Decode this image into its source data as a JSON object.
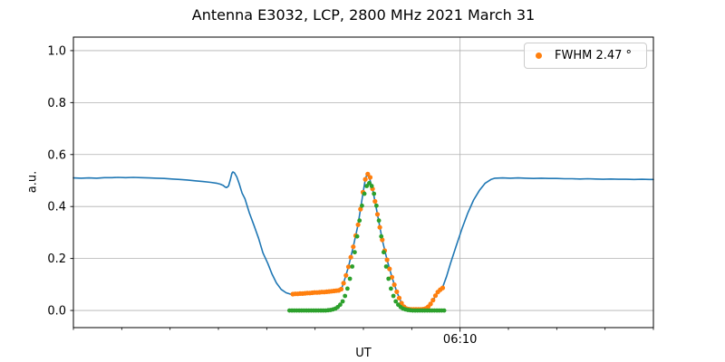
{
  "title": "Antenna E3032, LCP, 2800 MHz 2021 March 31",
  "axis": {
    "xlabel": "UT",
    "ylabel": "a.u."
  },
  "legend": {
    "label": "FWHM 2.47 °",
    "marker_color": "#ff7f0e"
  },
  "colors": {
    "background": "#ffffff",
    "grid": "#b0b0b0",
    "spine": "#000000",
    "tick_text": "#000000"
  },
  "chart_data": {
    "type": "line",
    "title": "Antenna E3032, LCP, 2800 MHz 2021 March 31",
    "xlabel": "UT",
    "ylabel": "a.u.",
    "x_unit": "minutes after 00:00 UT (370 = 06:10)",
    "xlim": [
      330,
      390
    ],
    "ylim": [
      -0.066,
      1.052
    ],
    "x_major_ticks": [
      {
        "value": 370,
        "label": "06:10"
      }
    ],
    "x_minor_tick_step": 5,
    "y_ticks": [
      0.0,
      0.2,
      0.4,
      0.6,
      0.8,
      1.0
    ],
    "grid": true,
    "legend_position": "upper right",
    "series": [
      {
        "name": "signal",
        "type": "line",
        "color": "#1f77b4",
        "line_width": 1.6,
        "points": [
          [
            330.0,
            0.51
          ],
          [
            330.8,
            0.509
          ],
          [
            331.6,
            0.51
          ],
          [
            332.4,
            0.509
          ],
          [
            333.2,
            0.511
          ],
          [
            334.0,
            0.511
          ],
          [
            334.6,
            0.512
          ],
          [
            335.4,
            0.511
          ],
          [
            336.2,
            0.512
          ],
          [
            337.0,
            0.511
          ],
          [
            337.8,
            0.51
          ],
          [
            338.6,
            0.509
          ],
          [
            339.4,
            0.508
          ],
          [
            340.2,
            0.506
          ],
          [
            341.0,
            0.504
          ],
          [
            341.8,
            0.502
          ],
          [
            342.6,
            0.499
          ],
          [
            343.4,
            0.496
          ],
          [
            344.2,
            0.493
          ],
          [
            344.8,
            0.49
          ],
          [
            345.2,
            0.486
          ],
          [
            345.5,
            0.481
          ],
          [
            345.7,
            0.475
          ],
          [
            345.85,
            0.473
          ],
          [
            346.05,
            0.479
          ],
          [
            346.25,
            0.505
          ],
          [
            346.4,
            0.528
          ],
          [
            346.5,
            0.533
          ],
          [
            346.65,
            0.53
          ],
          [
            346.9,
            0.514
          ],
          [
            347.15,
            0.488
          ],
          [
            347.45,
            0.452
          ],
          [
            347.75,
            0.43
          ],
          [
            348.2,
            0.376
          ],
          [
            348.7,
            0.325
          ],
          [
            349.15,
            0.278
          ],
          [
            349.6,
            0.222
          ],
          [
            350.1,
            0.182
          ],
          [
            350.55,
            0.14
          ],
          [
            351.0,
            0.106
          ],
          [
            351.5,
            0.081
          ],
          [
            352.0,
            0.068
          ],
          [
            352.45,
            0.063
          ],
          [
            352.9,
            0.062
          ],
          [
            353.5,
            0.063
          ],
          [
            354.2,
            0.065
          ],
          [
            355.0,
            0.066
          ],
          [
            355.8,
            0.068
          ],
          [
            356.6,
            0.071
          ],
          [
            357.2,
            0.074
          ],
          [
            357.7,
            0.08
          ],
          [
            358.0,
            0.112
          ],
          [
            358.45,
            0.168
          ],
          [
            358.95,
            0.245
          ],
          [
            359.45,
            0.33
          ],
          [
            359.95,
            0.45
          ],
          [
            360.2,
            0.505
          ],
          [
            360.35,
            0.522
          ],
          [
            360.6,
            0.512
          ],
          [
            360.95,
            0.468
          ],
          [
            361.45,
            0.37
          ],
          [
            361.95,
            0.272
          ],
          [
            362.45,
            0.195
          ],
          [
            362.95,
            0.128
          ],
          [
            363.45,
            0.072
          ],
          [
            363.95,
            0.028
          ],
          [
            364.45,
            0.008
          ],
          [
            364.95,
            0.005
          ],
          [
            365.7,
            0.004
          ],
          [
            366.2,
            0.005
          ],
          [
            366.7,
            0.014
          ],
          [
            367.2,
            0.04
          ],
          [
            367.7,
            0.071
          ],
          [
            368.2,
            0.09
          ],
          [
            368.6,
            0.13
          ],
          [
            369.0,
            0.18
          ],
          [
            369.6,
            0.248
          ],
          [
            370.2,
            0.315
          ],
          [
            370.8,
            0.375
          ],
          [
            371.4,
            0.425
          ],
          [
            372.0,
            0.462
          ],
          [
            372.6,
            0.49
          ],
          [
            373.2,
            0.504
          ],
          [
            373.6,
            0.509
          ],
          [
            374.4,
            0.51
          ],
          [
            375.2,
            0.509
          ],
          [
            376.0,
            0.51
          ],
          [
            376.8,
            0.509
          ],
          [
            377.6,
            0.508
          ],
          [
            378.4,
            0.509
          ],
          [
            379.2,
            0.508
          ],
          [
            380.0,
            0.508
          ],
          [
            380.8,
            0.507
          ],
          [
            381.6,
            0.507
          ],
          [
            382.4,
            0.506
          ],
          [
            383.2,
            0.507
          ],
          [
            384.0,
            0.506
          ],
          [
            384.8,
            0.505
          ],
          [
            385.6,
            0.506
          ],
          [
            386.4,
            0.505
          ],
          [
            387.2,
            0.505
          ],
          [
            388.0,
            0.504
          ],
          [
            388.8,
            0.505
          ],
          [
            389.6,
            0.504
          ],
          [
            390.0,
            0.504
          ]
        ]
      },
      {
        "name": "scan",
        "type": "scatter",
        "color": "#ff7f0e",
        "marker_radius": 2.6,
        "label": "FWHM 2.47 °",
        "points": [
          [
            352.7,
            0.063
          ],
          [
            352.95,
            0.064
          ],
          [
            353.2,
            0.064
          ],
          [
            353.45,
            0.065
          ],
          [
            353.7,
            0.065
          ],
          [
            353.95,
            0.066
          ],
          [
            354.2,
            0.067
          ],
          [
            354.45,
            0.067
          ],
          [
            354.7,
            0.068
          ],
          [
            354.95,
            0.069
          ],
          [
            355.2,
            0.069
          ],
          [
            355.45,
            0.07
          ],
          [
            355.7,
            0.071
          ],
          [
            355.95,
            0.071
          ],
          [
            356.2,
            0.072
          ],
          [
            356.45,
            0.073
          ],
          [
            356.7,
            0.074
          ],
          [
            356.95,
            0.075
          ],
          [
            357.2,
            0.076
          ],
          [
            357.45,
            0.077
          ],
          [
            357.7,
            0.082
          ],
          [
            357.95,
            0.105
          ],
          [
            358.2,
            0.135
          ],
          [
            358.45,
            0.168
          ],
          [
            358.7,
            0.205
          ],
          [
            358.95,
            0.245
          ],
          [
            359.2,
            0.288
          ],
          [
            359.45,
            0.33
          ],
          [
            359.7,
            0.39
          ],
          [
            359.95,
            0.455
          ],
          [
            360.2,
            0.505
          ],
          [
            360.45,
            0.525
          ],
          [
            360.7,
            0.512
          ],
          [
            360.95,
            0.468
          ],
          [
            361.2,
            0.42
          ],
          [
            361.45,
            0.37
          ],
          [
            361.7,
            0.32
          ],
          [
            361.95,
            0.272
          ],
          [
            362.2,
            0.23
          ],
          [
            362.45,
            0.195
          ],
          [
            362.7,
            0.16
          ],
          [
            362.95,
            0.128
          ],
          [
            363.2,
            0.099
          ],
          [
            363.45,
            0.072
          ],
          [
            363.7,
            0.048
          ],
          [
            363.95,
            0.028
          ],
          [
            364.2,
            0.014
          ],
          [
            364.45,
            0.007
          ],
          [
            364.7,
            0.005
          ],
          [
            364.95,
            0.004
          ],
          [
            365.2,
            0.004
          ],
          [
            365.45,
            0.004
          ],
          [
            365.7,
            0.004
          ],
          [
            365.95,
            0.004
          ],
          [
            366.2,
            0.005
          ],
          [
            366.45,
            0.008
          ],
          [
            366.7,
            0.014
          ],
          [
            366.95,
            0.025
          ],
          [
            367.2,
            0.04
          ],
          [
            367.45,
            0.057
          ],
          [
            367.7,
            0.071
          ],
          [
            367.95,
            0.08
          ],
          [
            368.2,
            0.087
          ]
        ]
      },
      {
        "name": "gaussian-fit",
        "type": "scatter",
        "color": "#2ca02c",
        "marker_radius": 2.4,
        "points": [
          [
            352.35,
            0.0
          ],
          [
            352.6,
            0.0
          ],
          [
            352.85,
            0.0
          ],
          [
            353.1,
            0.0
          ],
          [
            353.35,
            0.0
          ],
          [
            353.6,
            0.0
          ],
          [
            353.85,
            0.0
          ],
          [
            354.1,
            0.0
          ],
          [
            354.35,
            0.0
          ],
          [
            354.6,
            0.0
          ],
          [
            354.85,
            0.0
          ],
          [
            355.1,
            0.0
          ],
          [
            355.35,
            0.0
          ],
          [
            355.6,
            0.0
          ],
          [
            355.85,
            0.0
          ],
          [
            356.1,
            0.0
          ],
          [
            356.35,
            0.001
          ],
          [
            356.6,
            0.002
          ],
          [
            356.85,
            0.004
          ],
          [
            357.1,
            0.007
          ],
          [
            357.35,
            0.013
          ],
          [
            357.6,
            0.022
          ],
          [
            357.85,
            0.035
          ],
          [
            358.1,
            0.056
          ],
          [
            358.35,
            0.084
          ],
          [
            358.6,
            0.122
          ],
          [
            358.85,
            0.169
          ],
          [
            359.1,
            0.224
          ],
          [
            359.35,
            0.285
          ],
          [
            359.6,
            0.346
          ],
          [
            359.85,
            0.403
          ],
          [
            360.1,
            0.449
          ],
          [
            360.35,
            0.479
          ],
          [
            360.6,
            0.49
          ],
          [
            360.85,
            0.479
          ],
          [
            361.1,
            0.449
          ],
          [
            361.35,
            0.403
          ],
          [
            361.6,
            0.346
          ],
          [
            361.85,
            0.285
          ],
          [
            362.1,
            0.224
          ],
          [
            362.35,
            0.169
          ],
          [
            362.6,
            0.122
          ],
          [
            362.85,
            0.084
          ],
          [
            363.1,
            0.056
          ],
          [
            363.35,
            0.035
          ],
          [
            363.6,
            0.022
          ],
          [
            363.85,
            0.013
          ],
          [
            364.1,
            0.007
          ],
          [
            364.35,
            0.004
          ],
          [
            364.6,
            0.002
          ],
          [
            364.85,
            0.001
          ],
          [
            365.1,
            0.0
          ],
          [
            365.35,
            0.0
          ],
          [
            365.6,
            0.0
          ],
          [
            365.85,
            0.0
          ],
          [
            366.1,
            0.0
          ],
          [
            366.35,
            0.0
          ],
          [
            366.6,
            0.0
          ],
          [
            366.85,
            0.0
          ],
          [
            367.1,
            0.0
          ],
          [
            367.35,
            0.0
          ],
          [
            367.6,
            0.0
          ],
          [
            367.85,
            0.0
          ],
          [
            368.1,
            0.0
          ],
          [
            368.35,
            0.0
          ]
        ]
      }
    ]
  }
}
